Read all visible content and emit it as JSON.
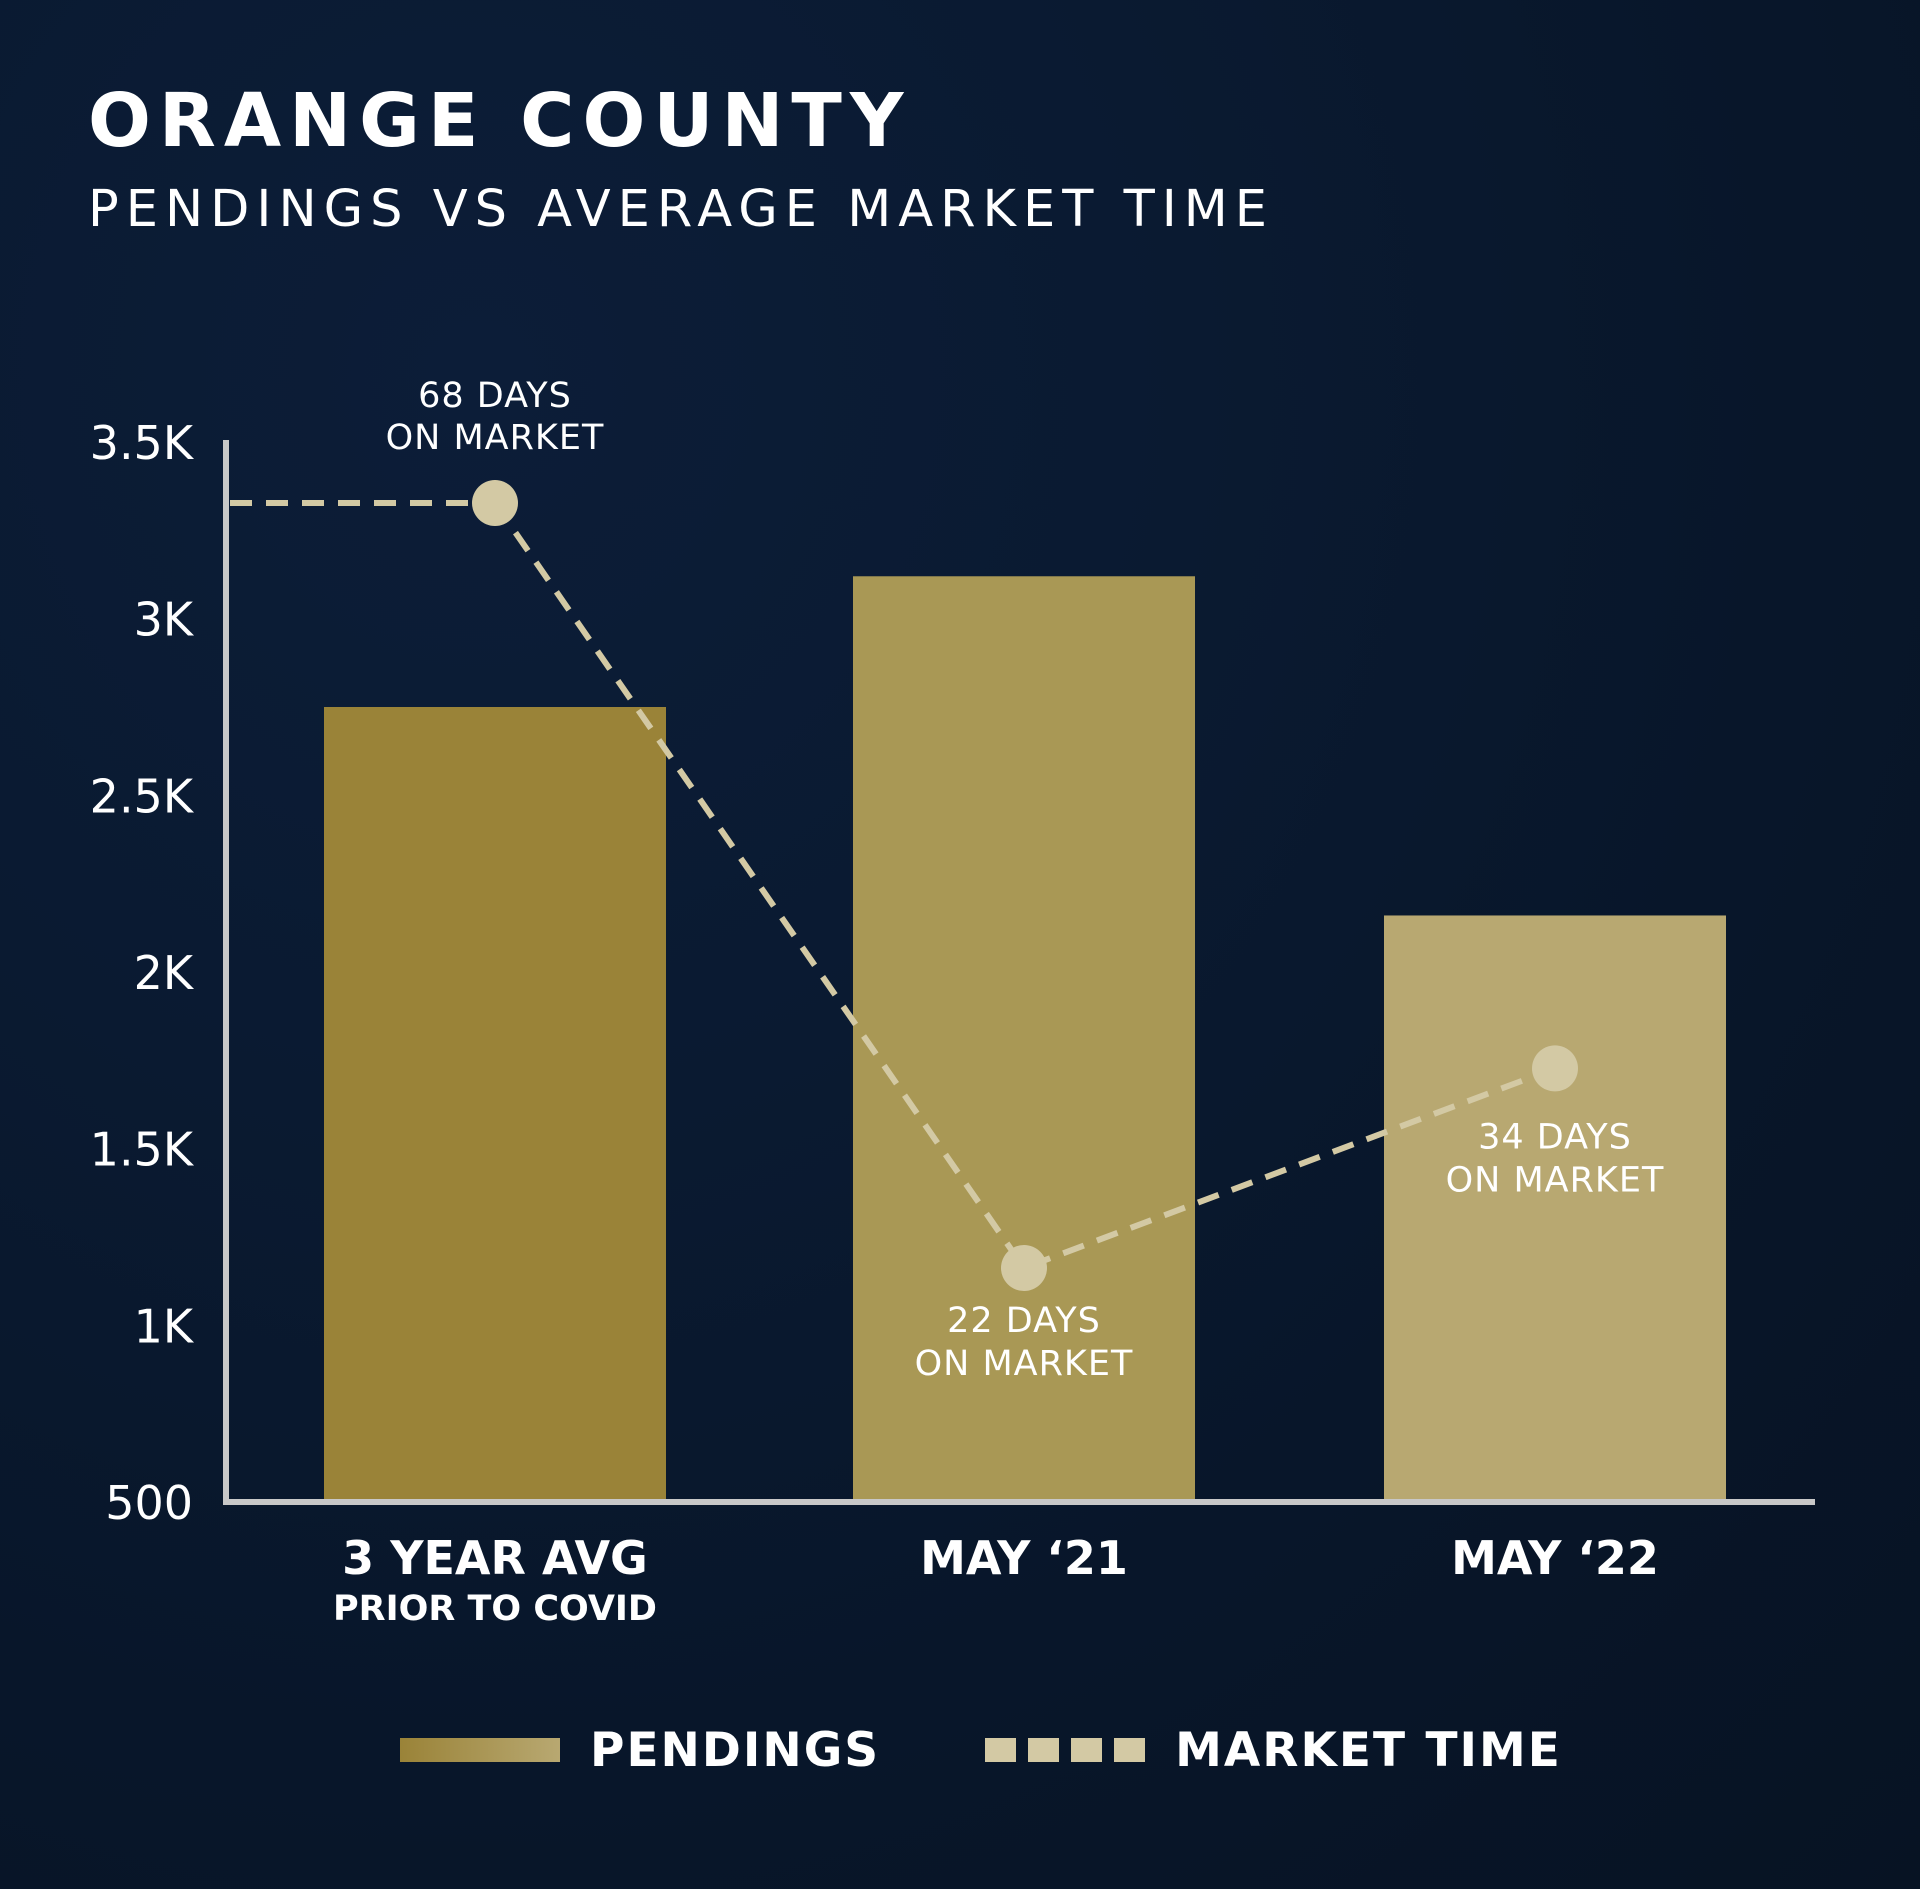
{
  "header": {
    "title": "ORANGE COUNTY",
    "subtitle": "PENDINGS VS AVERAGE MARKET TIME"
  },
  "colors": {
    "background": "#0a1a31",
    "bar_1": "#9a8338",
    "bar_2": "#a99855",
    "bar_3": "#b8a871",
    "market_time_line": "#d3c9a4",
    "axis": "#c8c8c8",
    "text": "#ffffff"
  },
  "chart_data": {
    "type": "bar",
    "categories": [
      {
        "label": "3 YEAR AVG",
        "sublabel": "PRIOR TO COVID"
      },
      {
        "label": "MAY ‘21",
        "sublabel": ""
      },
      {
        "label": "MAY ‘22",
        "sublabel": ""
      }
    ],
    "series": [
      {
        "name": "PENDINGS",
        "type": "bar",
        "values": [
          2750,
          3120,
          2160
        ]
      },
      {
        "name": "MARKET TIME",
        "type": "line",
        "style": "dashed",
        "values": [
          68,
          22,
          34
        ],
        "point_labels": [
          [
            "68 DAYS",
            "ON MARKET"
          ],
          [
            "22 DAYS",
            "ON MARKET"
          ],
          [
            "34 DAYS",
            "ON MARKET"
          ]
        ]
      }
    ],
    "y_ticks": [
      "3.5K",
      "3K",
      "2.5K",
      "2K",
      "1.5K",
      "1K",
      "500"
    ],
    "y_tick_values": [
      3500,
      3000,
      2500,
      2000,
      1500,
      1000,
      500
    ],
    "ylim": [
      500,
      3500
    ],
    "grid": false,
    "legend_placement": "bottom-center"
  },
  "legend": {
    "pendings_label": "PENDINGS",
    "market_time_label": "MARKET TIME"
  }
}
